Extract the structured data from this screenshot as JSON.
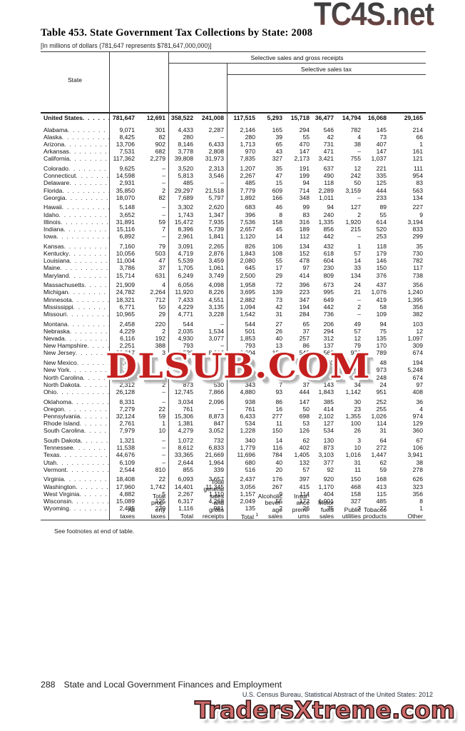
{
  "watermarks": {
    "top": "TC4S.net",
    "middle": "DLSUB.COM",
    "bottom": "TradersXtreme.com"
  },
  "colors": {
    "dlsub_red": "#c41f1f",
    "traders_red": "#cf6a6a",
    "tc4s_gradient_top": "#3a3a3a",
    "tc4s_gradient_bottom": "#7b4a44"
  },
  "title": "Table 453. State Government Tax Collections by State: 2008",
  "subtitle": "[In millions of dollars (781,647 represents $781,647,000,000)]",
  "table": {
    "spanner1": "Selective sales and gross receipts",
    "spanner2": "Selective sales tax",
    "headers": {
      "state": "State",
      "all_taxes": "All\ntaxes",
      "property": "Total\nprop-\nerty\ntaxes",
      "total": "Total",
      "general_sales": "Total\ngeneral\nsales\nand\ngross\nreceipts",
      "selective_total": {
        "label": "Total ",
        "footnote": "1"
      },
      "alcoholic": "Alcoholic\nbever-\nage\nsales",
      "insurance": "Insur-\nance\npremi-\nums",
      "motor_fuels": "Motor\nfuels\nsales",
      "public_utilities": "Public\nutilities",
      "tobacco": "Tobacco\nproducts",
      "other": "Other"
    },
    "united_states": {
      "label": "United States",
      "values": [
        "781,647",
        "12,691",
        "358,522",
        "241,008",
        "117,515",
        "5,293",
        "15,718",
        "36,477",
        "14,794",
        "16,068",
        "29,165"
      ]
    },
    "groups": [
      [
        {
          "state": "Alabama",
          "values": [
            "9,071",
            "301",
            "4,433",
            "2,287",
            "2,146",
            "165",
            "294",
            "546",
            "782",
            "145",
            "214"
          ]
        },
        {
          "state": "Alaska",
          "values": [
            "8,425",
            "82",
            "280",
            "–",
            "280",
            "39",
            "55",
            "42",
            "4",
            "73",
            "66"
          ]
        },
        {
          "state": "Arizona",
          "values": [
            "13,706",
            "902",
            "8,146",
            "6,433",
            "1,713",
            "65",
            "470",
            "731",
            "38",
            "407",
            "1"
          ]
        },
        {
          "state": "Arkansas",
          "values": [
            "7,531",
            "682",
            "3,778",
            "2,808",
            "970",
            "43",
            "147",
            "471",
            "–",
            "147",
            "161"
          ]
        },
        {
          "state": "California",
          "values": [
            "117,362",
            "2,279",
            "39,808",
            "31,973",
            "7,835",
            "327",
            "2,173",
            "3,421",
            "755",
            "1,037",
            "121"
          ]
        }
      ],
      [
        {
          "state": "Colorado",
          "values": [
            "9,625",
            "–",
            "3,520",
            "2,313",
            "1,207",
            "35",
            "191",
            "637",
            "12",
            "221",
            "111"
          ]
        },
        {
          "state": "Connecticut",
          "values": [
            "14,598",
            "–",
            "5,813",
            "3,546",
            "2,267",
            "47",
            "199",
            "490",
            "242",
            "335",
            "954"
          ]
        },
        {
          "state": "Delaware",
          "values": [
            "2,931",
            "–",
            "485",
            "–",
            "485",
            "15",
            "94",
            "118",
            "50",
            "125",
            "83"
          ]
        },
        {
          "state": "Florida",
          "values": [
            "35,850",
            "2",
            "29,297",
            "21,518",
            "7,779",
            "609",
            "714",
            "2,289",
            "3,159",
            "444",
            "563"
          ]
        },
        {
          "state": "Georgia",
          "values": [
            "18,070",
            "82",
            "7,689",
            "5,797",
            "1,892",
            "166",
            "348",
            "1,011",
            "–",
            "233",
            "134"
          ]
        }
      ],
      [
        {
          "state": "Hawaii",
          "values": [
            "5,148",
            "–",
            "3,302",
            "2,620",
            "683",
            "46",
            "99",
            "94",
            "127",
            "89",
            "227"
          ]
        },
        {
          "state": "Idaho",
          "values": [
            "3,652",
            "–",
            "1,743",
            "1,347",
            "396",
            "8",
            "83",
            "240",
            "2",
            "55",
            "9"
          ]
        },
        {
          "state": "Illinois",
          "values": [
            "31,891",
            "59",
            "15,472",
            "7,935",
            "7,536",
            "158",
            "316",
            "1,335",
            "1,920",
            "614",
            "3,194"
          ]
        },
        {
          "state": "Indiana",
          "values": [
            "15,116",
            "7",
            "8,396",
            "5,739",
            "2,657",
            "45",
            "189",
            "856",
            "215",
            "520",
            "833"
          ]
        },
        {
          "state": "Iowa",
          "values": [
            "6,892",
            "–",
            "2,961",
            "1,841",
            "1,120",
            "14",
            "112",
            "442",
            "–",
            "253",
            "299"
          ]
        }
      ],
      [
        {
          "state": "Kansas",
          "values": [
            "7,160",
            "79",
            "3,091",
            "2,265",
            "826",
            "106",
            "134",
            "432",
            "1",
            "118",
            "35"
          ]
        },
        {
          "state": "Kentucky",
          "values": [
            "10,056",
            "503",
            "4,719",
            "2,876",
            "1,843",
            "108",
            "152",
            "618",
            "57",
            "179",
            "730"
          ]
        },
        {
          "state": "Louisiana",
          "values": [
            "11,004",
            "47",
            "5,539",
            "3,459",
            "2,080",
            "55",
            "478",
            "604",
            "14",
            "146",
            "782"
          ]
        },
        {
          "state": "Maine",
          "values": [
            "3,786",
            "37",
            "1,705",
            "1,061",
            "645",
            "17",
            "97",
            "230",
            "33",
            "150",
            "117"
          ]
        },
        {
          "state": "Maryland",
          "values": [
            "15,714",
            "631",
            "6,249",
            "3,749",
            "2,500",
            "29",
            "414",
            "809",
            "134",
            "376",
            "738"
          ]
        }
      ],
      [
        {
          "state": "Massachusetts",
          "values": [
            "21,909",
            "4",
            "6,056",
            "4,098",
            "1,958",
            "72",
            "396",
            "673",
            "24",
            "437",
            "356"
          ]
        },
        {
          "state": "Michigan",
          "values": [
            "24,782",
            "2,264",
            "11,920",
            "8,226",
            "3,695",
            "139",
            "223",
            "995",
            "21",
            "1,076",
            "1,240"
          ]
        },
        {
          "state": "Minnesota",
          "values": [
            "18,321",
            "712",
            "7,433",
            "4,551",
            "2,882",
            "73",
            "347",
            "649",
            "–",
            "419",
            "1,395"
          ]
        },
        {
          "state": "Mississippi",
          "values": [
            "6,771",
            "50",
            "4,229",
            "3,135",
            "1,094",
            "42",
            "194",
            "442",
            "2",
            "58",
            "356"
          ]
        },
        {
          "state": "Missouri",
          "values": [
            "10,965",
            "29",
            "4,771",
            "3,228",
            "1,542",
            "31",
            "284",
            "736",
            "–",
            "109",
            "382"
          ]
        }
      ],
      [
        {
          "state": "Montana",
          "values": [
            "2,458",
            "220",
            "544",
            "–",
            "544",
            "27",
            "65",
            "206",
            "49",
            "94",
            "103"
          ]
        },
        {
          "state": "Nebraska",
          "values": [
            "4,229",
            "2",
            "2,035",
            "1,534",
            "501",
            "26",
            "37",
            "294",
            "57",
            "75",
            "12"
          ]
        },
        {
          "state": "Nevada",
          "values": [
            "6,116",
            "192",
            "4,930",
            "3,077",
            "1,853",
            "40",
            "257",
            "312",
            "12",
            "135",
            "1,097"
          ]
        },
        {
          "state": "New Hampshire",
          "values": [
            "2,251",
            "388",
            "793",
            "–",
            "793",
            "13",
            "86",
            "137",
            "79",
            "170",
            "309"
          ]
        },
        {
          "state": "New Jersey",
          "values": [
            "30,617",
            "3",
            "12,520",
            "8,916",
            "3,604",
            "104",
            "543",
            "563",
            "930",
            "789",
            "674"
          ]
        }
      ],
      [
        {
          "state": "New Mexico",
          "values": [
            "5,646",
            "",
            "",
            "",
            "",
            "",
            "",
            "50",
            "36",
            "48",
            "194"
          ]
        },
        {
          "state": "New York",
          "values": [
            "65,371",
            "",
            "",
            "",
            "",
            "",
            "",
            "28",
            "764",
            "973",
            "5,248"
          ]
        },
        {
          "state": "North Carolina",
          "values": [
            "22,781",
            "",
            "",
            "",
            "",
            "",
            "",
            "82",
            "389",
            "248",
            "674"
          ]
        },
        {
          "state": "North Dakota",
          "values": [
            "2,312",
            "2",
            "873",
            "530",
            "343",
            "7",
            "37",
            "143",
            "34",
            "24",
            "97"
          ]
        },
        {
          "state": "Ohio",
          "values": [
            "26,128",
            "–",
            "12,745",
            "7,866",
            "4,880",
            "93",
            "444",
            "1,843",
            "1,142",
            "951",
            "408"
          ]
        }
      ],
      [
        {
          "state": "Oklahoma",
          "values": [
            "8,331",
            "–",
            "3,034",
            "2,096",
            "938",
            "86",
            "147",
            "385",
            "30",
            "252",
            "36"
          ]
        },
        {
          "state": "Oregon",
          "values": [
            "7,279",
            "22",
            "761",
            "–",
            "761",
            "16",
            "50",
            "414",
            "23",
            "255",
            "4"
          ]
        },
        {
          "state": "Pennsylvania",
          "values": [
            "32,124",
            "59",
            "15,306",
            "8,873",
            "6,433",
            "277",
            "698",
            "2,102",
            "1,355",
            "1,026",
            "974"
          ]
        },
        {
          "state": "Rhode Island",
          "values": [
            "2,761",
            "1",
            "1,381",
            "847",
            "534",
            "11",
            "53",
            "127",
            "100",
            "114",
            "129"
          ]
        },
        {
          "state": "South Carolina",
          "values": [
            "7,979",
            "10",
            "4,279",
            "3,052",
            "1,228",
            "150",
            "126",
            "534",
            "26",
            "31",
            "360"
          ]
        }
      ],
      [
        {
          "state": "South Dakota",
          "values": [
            "1,321",
            "–",
            "1,072",
            "732",
            "340",
            "14",
            "62",
            "130",
            "3",
            "64",
            "67"
          ]
        },
        {
          "state": "Tennessee",
          "values": [
            "11,538",
            "–",
            "8,612",
            "6,833",
            "1,779",
            "116",
            "402",
            "873",
            "10",
            "272",
            "106"
          ]
        },
        {
          "state": "Texas",
          "values": [
            "44,676",
            "–",
            "33,365",
            "21,669",
            "11,696",
            "784",
            "1,405",
            "3,103",
            "1,016",
            "1,447",
            "3,941"
          ]
        },
        {
          "state": "Utah",
          "values": [
            "6,109",
            "–",
            "2,644",
            "1,964",
            "680",
            "40",
            "132",
            "377",
            "31",
            "62",
            "38"
          ]
        },
        {
          "state": "Vermont",
          "values": [
            "2,544",
            "810",
            "855",
            "339",
            "516",
            "20",
            "57",
            "92",
            "11",
            "59",
            "278"
          ]
        }
      ],
      [
        {
          "state": "Virginia",
          "values": [
            "18,408",
            "22",
            "6,093",
            "3,657",
            "2,437",
            "176",
            "397",
            "920",
            "150",
            "168",
            "626"
          ]
        },
        {
          "state": "Washington",
          "values": [
            "17,960",
            "1,742",
            "14,401",
            "11,345",
            "3,056",
            "267",
            "415",
            "1,170",
            "468",
            "413",
            "323"
          ]
        },
        {
          "state": "West Virginia",
          "values": [
            "4,882",
            "5",
            "2,267",
            "1,110",
            "1,157",
            "9",
            "114",
            "404",
            "158",
            "115",
            "356"
          ]
        },
        {
          "state": "Wisconsin",
          "values": [
            "15,089",
            "125",
            "6,317",
            "4,268",
            "2,049",
            "55",
            "172",
            "1,001",
            "327",
            "485",
            "8"
          ]
        },
        {
          "state": "Wyoming",
          "values": [
            "2,405",
            "279",
            "1,116",
            "981",
            "135",
            "2",
            "26",
            "75",
            "3",
            "27",
            "1"
          ]
        }
      ]
    ]
  },
  "footnote": "See footnotes at end of table.",
  "footer": {
    "page_number": "288",
    "section": "State and Local Government Finances and Employment",
    "source": "U.S. Census Bureau, Statistical Abstract of the United States: 2012"
  }
}
